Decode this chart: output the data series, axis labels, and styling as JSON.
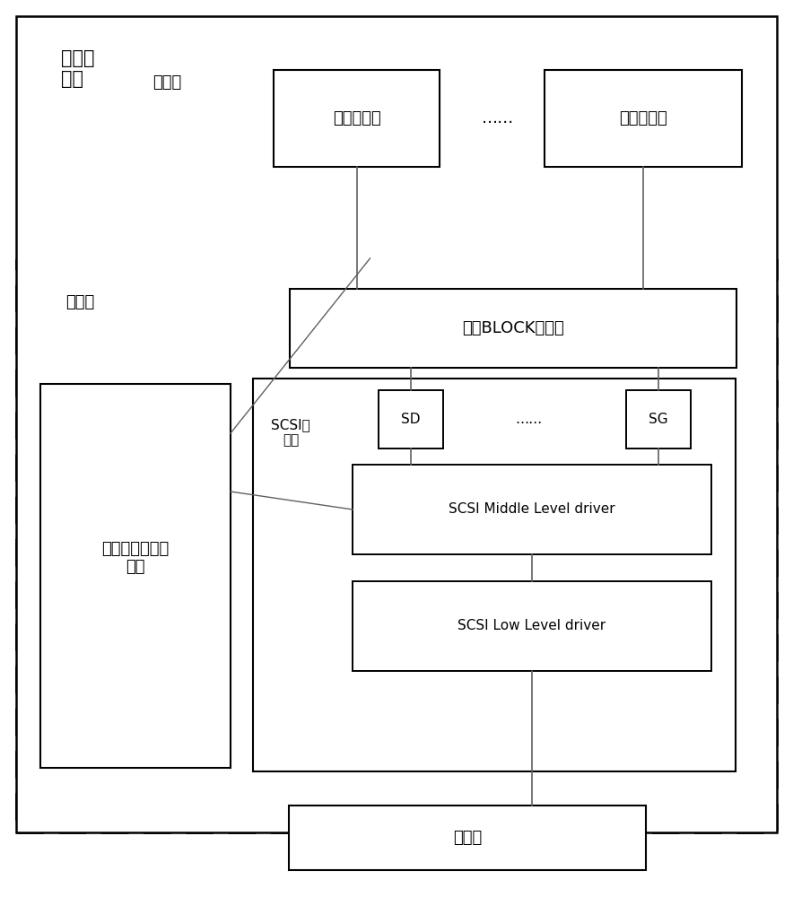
{
  "title": "计算机\n系统",
  "user_state_label": "用户态",
  "kernel_state_label": "内核态",
  "user_app_label": "用户态应用",
  "user_app2_label": "用户态应用",
  "dots_label": "……",
  "block_device_label": "块（BLOCK）设备",
  "scsi_stack_label": "SCSI协\n议栈",
  "sd_label": "SD",
  "sg_label": "SG",
  "scsi_dots_label": "……",
  "middle_driver_label": "SCSI Middle Level driver",
  "low_driver_label": "SCSI Low Level driver",
  "memory_error_label": "存储器错误处理\n组件",
  "storage_label": "存储器",
  "bg_color": "#ffffff",
  "line_color": "#606060",
  "font_color": "#000000",
  "font_size_large": 15,
  "font_size_medium": 13,
  "font_size_small": 11
}
